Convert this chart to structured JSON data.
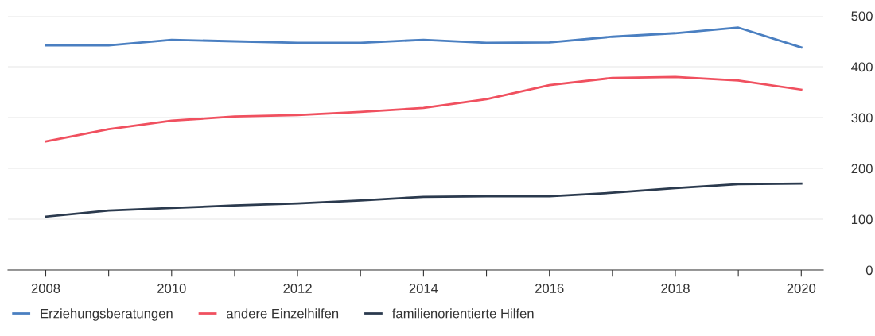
{
  "chart_data": {
    "type": "line",
    "x": [
      2008,
      2009,
      2010,
      2011,
      2012,
      2013,
      2014,
      2015,
      2016,
      2017,
      2018,
      2019,
      2020
    ],
    "series": [
      {
        "name": "Erziehungsberatungen",
        "color": "#4a7fc1",
        "values": [
          442,
          442,
          453,
          450,
          447,
          447,
          453,
          447,
          448,
          459,
          466,
          477,
          438
        ]
      },
      {
        "name": "andere Einzelhilfen",
        "color": "#f0505f",
        "values": [
          253,
          277,
          294,
          302,
          305,
          311,
          319,
          336,
          364,
          378,
          380,
          373,
          355
        ]
      },
      {
        "name": "familienorientierte Hilfen",
        "color": "#2b3a4e",
        "values": [
          105,
          117,
          122,
          127,
          131,
          137,
          144,
          145,
          145,
          152,
          161,
          169,
          170
        ]
      }
    ],
    "xlim": [
      2007.4,
      2020.35
    ],
    "xticks": [
      2008,
      {
        "value": 2009,
        "label": null
      },
      2010,
      {
        "value": 2011,
        "label": null
      },
      2012,
      {
        "value": 2013,
        "label": null
      },
      2014,
      {
        "value": 2015,
        "label": null
      },
      2016,
      {
        "value": 2017,
        "label": null
      },
      2018,
      {
        "value": 2019,
        "label": null
      },
      2020
    ],
    "ylim": [
      0,
      500
    ],
    "yticks": [
      0,
      100,
      200,
      300,
      400,
      500
    ],
    "grid": "y",
    "legend": "bottom left",
    "marker": "none",
    "line_style": "solid"
  }
}
